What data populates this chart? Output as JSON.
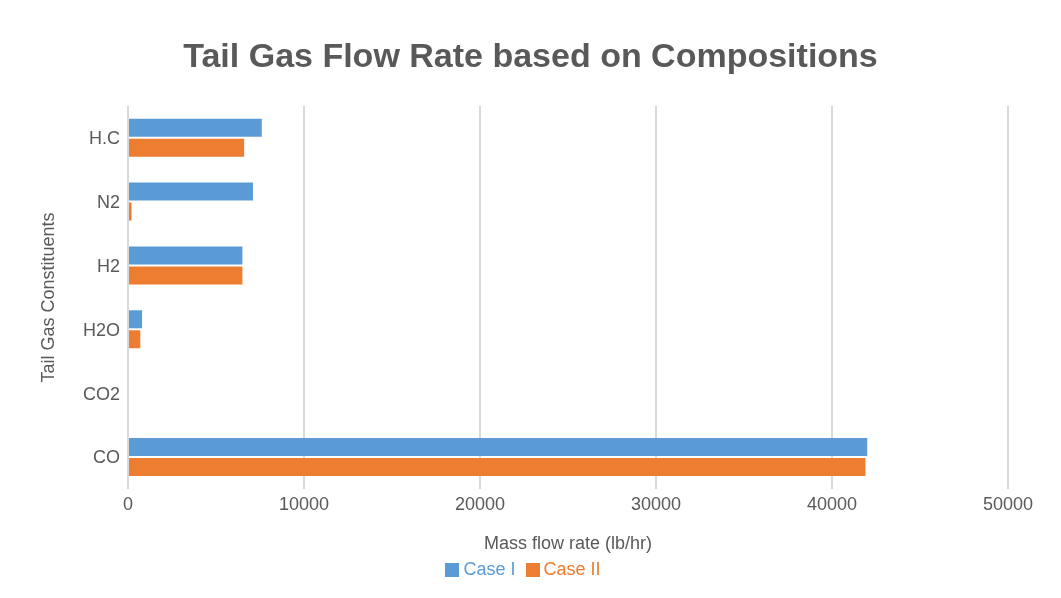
{
  "chart_data": {
    "type": "bar",
    "orientation": "horizontal",
    "title": "Tail Gas Flow Rate based on Compositions",
    "xlabel": "Mass flow rate (lb/hr)",
    "ylabel": "Tail Gas Constituents",
    "categories": [
      "H.C",
      "N2",
      "H2",
      "H2O",
      "CO2",
      "CO"
    ],
    "series": [
      {
        "name": "Case I",
        "color": "#5b9bd5",
        "values": [
          7600,
          7100,
          6500,
          800,
          0,
          42000
        ]
      },
      {
        "name": "Case II",
        "color": "#ed7d31",
        "values": [
          6600,
          200,
          6500,
          700,
          0,
          41900
        ]
      }
    ],
    "xlim": [
      0,
      50000
    ],
    "xticks": [
      0,
      10000,
      20000,
      30000,
      40000,
      50000
    ],
    "grid": "x",
    "legend": "bottom"
  }
}
